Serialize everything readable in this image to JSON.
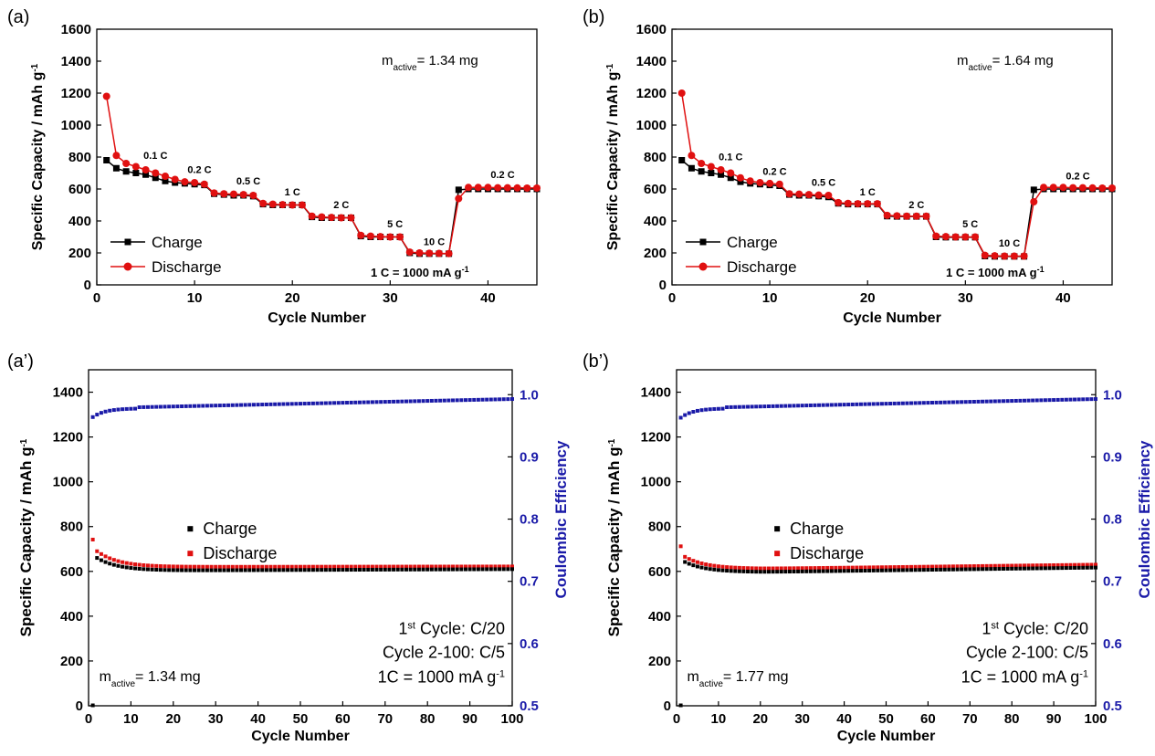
{
  "chart_data": [
    {
      "id": "a",
      "panel_label": "(a)",
      "type": "line",
      "xlabel": "Cycle Number",
      "ylabel": "Specific Capacity / mAh g",
      "ylabel_sup": "-1",
      "xlim": [
        0,
        45
      ],
      "ylim": [
        0,
        1600
      ],
      "xticks": [
        0,
        10,
        20,
        30,
        40
      ],
      "yticks": [
        0,
        200,
        400,
        600,
        800,
        1000,
        1200,
        1400,
        1600
      ],
      "mass_label": "m",
      "mass_sub": "active",
      "mass_value": "= 1.34 mg",
      "current_label": "1 C = 1000 mA g",
      "current_sup": "-1",
      "rate_labels": [
        {
          "text": "0.1 C",
          "x": 6,
          "y": 790
        },
        {
          "text": "0.2 C",
          "x": 10.5,
          "y": 700
        },
        {
          "text": "0.5 C",
          "x": 15.5,
          "y": 630
        },
        {
          "text": "1 C",
          "x": 20,
          "y": 560
        },
        {
          "text": "2 C",
          "x": 25,
          "y": 480
        },
        {
          "text": "5 C",
          "x": 30.5,
          "y": 360
        },
        {
          "text": "10 C",
          "x": 34.5,
          "y": 250
        },
        {
          "text": "0.2 C",
          "x": 41.5,
          "y": 670
        }
      ],
      "legend": "left-middle",
      "series": [
        {
          "name": "Charge",
          "color": "#000000",
          "marker": "square",
          "x": [
            1,
            2,
            3,
            4,
            5,
            6,
            7,
            8,
            9,
            10,
            11,
            12,
            13,
            14,
            15,
            16,
            17,
            18,
            19,
            20,
            21,
            22,
            23,
            24,
            25,
            26,
            27,
            28,
            29,
            30,
            31,
            32,
            33,
            34,
            35,
            36,
            37,
            38,
            39,
            40,
            41,
            42,
            43,
            44,
            45
          ],
          "values": [
            780,
            730,
            710,
            700,
            690,
            670,
            650,
            640,
            635,
            630,
            625,
            570,
            565,
            560,
            560,
            555,
            505,
            500,
            500,
            500,
            500,
            425,
            420,
            420,
            420,
            420,
            305,
            300,
            300,
            300,
            300,
            200,
            195,
            195,
            195,
            195,
            595,
            600,
            600,
            600,
            600,
            600,
            600,
            600,
            600
          ]
        },
        {
          "name": "Discharge",
          "color": "#e01010",
          "marker": "circle",
          "x": [
            1,
            2,
            3,
            4,
            5,
            6,
            7,
            8,
            9,
            10,
            11,
            12,
            13,
            14,
            15,
            16,
            17,
            18,
            19,
            20,
            21,
            22,
            23,
            24,
            25,
            26,
            27,
            28,
            29,
            30,
            31,
            32,
            33,
            34,
            35,
            36,
            37,
            38,
            39,
            40,
            41,
            42,
            43,
            44,
            45
          ],
          "values": [
            1180,
            810,
            760,
            740,
            720,
            700,
            680,
            660,
            645,
            640,
            630,
            575,
            570,
            568,
            565,
            560,
            510,
            505,
            502,
            500,
            500,
            430,
            425,
            422,
            420,
            420,
            310,
            305,
            302,
            300,
            300,
            205,
            200,
            198,
            197,
            196,
            540,
            610,
            610,
            610,
            608,
            608,
            607,
            606,
            606
          ]
        }
      ]
    },
    {
      "id": "b",
      "panel_label": "(b)",
      "type": "line",
      "xlabel": "Cycle Number",
      "ylabel": "Specific Capacity / mAh g",
      "ylabel_sup": "-1",
      "xlim": [
        0,
        45
      ],
      "ylim": [
        0,
        1600
      ],
      "xticks": [
        0,
        10,
        20,
        30,
        40
      ],
      "yticks": [
        0,
        200,
        400,
        600,
        800,
        1000,
        1200,
        1400,
        1600
      ],
      "mass_label": "m",
      "mass_sub": "active",
      "mass_value": "= 1.64 mg",
      "current_label": "1 C = 1000 mA g",
      "current_sup": "-1",
      "rate_labels": [
        {
          "text": "0.1 C",
          "x": 6,
          "y": 780
        },
        {
          "text": "0.2 C",
          "x": 10.5,
          "y": 690
        },
        {
          "text": "0.5 C",
          "x": 15.5,
          "y": 620
        },
        {
          "text": "1 C",
          "x": 20,
          "y": 560
        },
        {
          "text": "2 C",
          "x": 25,
          "y": 480
        },
        {
          "text": "5 C",
          "x": 30.5,
          "y": 360
        },
        {
          "text": "10 C",
          "x": 34.5,
          "y": 240
        },
        {
          "text": "0.2 C",
          "x": 41.5,
          "y": 660
        }
      ],
      "legend": "left-middle",
      "series": [
        {
          "name": "Charge",
          "color": "#000000",
          "marker": "square",
          "x": [
            1,
            2,
            3,
            4,
            5,
            6,
            7,
            8,
            9,
            10,
            11,
            12,
            13,
            14,
            15,
            16,
            17,
            18,
            19,
            20,
            21,
            22,
            23,
            24,
            25,
            26,
            27,
            28,
            29,
            30,
            31,
            32,
            33,
            34,
            35,
            36,
            37,
            38,
            39,
            40,
            41,
            42,
            43,
            44,
            45
          ],
          "values": [
            780,
            730,
            710,
            700,
            690,
            670,
            645,
            635,
            630,
            625,
            620,
            565,
            560,
            560,
            555,
            550,
            510,
            505,
            505,
            505,
            505,
            430,
            428,
            428,
            428,
            428,
            300,
            298,
            298,
            298,
            298,
            180,
            178,
            178,
            178,
            178,
            595,
            600,
            600,
            600,
            600,
            600,
            600,
            600,
            600
          ]
        },
        {
          "name": "Discharge",
          "color": "#e01010",
          "marker": "circle",
          "x": [
            1,
            2,
            3,
            4,
            5,
            6,
            7,
            8,
            9,
            10,
            11,
            12,
            13,
            14,
            15,
            16,
            17,
            18,
            19,
            20,
            21,
            22,
            23,
            24,
            25,
            26,
            27,
            28,
            29,
            30,
            31,
            32,
            33,
            34,
            35,
            36,
            37,
            38,
            39,
            40,
            41,
            42,
            43,
            44,
            45
          ],
          "values": [
            1200,
            810,
            760,
            740,
            720,
            700,
            670,
            650,
            640,
            635,
            630,
            570,
            568,
            565,
            562,
            560,
            515,
            510,
            508,
            508,
            508,
            435,
            432,
            430,
            430,
            430,
            305,
            302,
            300,
            300,
            300,
            185,
            182,
            180,
            180,
            180,
            520,
            610,
            610,
            610,
            608,
            608,
            607,
            606,
            606
          ]
        }
      ]
    },
    {
      "id": "a2",
      "panel_label": "(a’)",
      "type": "scatter",
      "xlabel": "Cycle Number",
      "ylabel": "Specific Capacity / mAh g",
      "ylabel_sup": "-1",
      "y2label": "Coulombic Efficiency",
      "xlim": [
        0,
        100
      ],
      "ylim": [
        0,
        1500
      ],
      "y2lim": [
        0.5,
        1.04
      ],
      "xticks": [
        0,
        10,
        20,
        30,
        40,
        50,
        60,
        70,
        80,
        90,
        100
      ],
      "yticks": [
        0,
        200,
        400,
        600,
        800,
        1000,
        1200,
        1400
      ],
      "y2ticks": [
        "0.5",
        "0.6",
        "0.7",
        "0.8",
        "0.9",
        "1.0"
      ],
      "mass_label": "m",
      "mass_sub": "active",
      "mass_value": "= 1.34 mg",
      "cond_line1_num": "1",
      "cond_line1_sup": "st",
      "cond_line1_rest": " Cycle: C/20",
      "cond_line2": "Cycle 2-100: C/5",
      "cond_line3": "1C = 1000 mA g",
      "cond_line3_sup": "-1",
      "legend": "center",
      "charge": {
        "name": "Charge",
        "color": "#000000",
        "first": 668,
        "min": 612,
        "end": 618,
        "first_x": 1
      },
      "discharge": {
        "name": "Discharge",
        "color": "#e01010",
        "first": 742,
        "second": 690,
        "min": 620,
        "end": 622
      },
      "efficiency": {
        "color": "#1a1aa8",
        "start": 0.964,
        "plateau_start": 0.978,
        "end": 0.993
      }
    },
    {
      "id": "b2",
      "panel_label": "(b’)",
      "type": "scatter",
      "xlabel": "Cycle Number",
      "ylabel": "Specific Capacity / mAh g",
      "ylabel_sup": "-1",
      "y2label": "Coulombic Efficiency",
      "xlim": [
        0,
        100
      ],
      "ylim": [
        0,
        1500
      ],
      "y2lim": [
        0.5,
        1.04
      ],
      "xticks": [
        0,
        10,
        20,
        30,
        40,
        50,
        60,
        70,
        80,
        90,
        100
      ],
      "yticks": [
        0,
        200,
        400,
        600,
        800,
        1000,
        1200,
        1400
      ],
      "y2ticks": [
        "0.5",
        "0.6",
        "0.7",
        "0.8",
        "0.9",
        "1.0"
      ],
      "mass_label": "m",
      "mass_sub": "active",
      "mass_value": "= 1.77 mg",
      "cond_line1_num": "1",
      "cond_line1_sup": "st",
      "cond_line1_rest": " Cycle: C/20",
      "cond_line2": "Cycle 2-100: C/5",
      "cond_line3": "1C = 1000 mA g",
      "cond_line3_sup": "-1",
      "legend": "center",
      "charge": {
        "name": "Charge",
        "color": "#000000",
        "first": 650,
        "min": 605,
        "end": 625,
        "first_x": 1
      },
      "discharge": {
        "name": "Discharge",
        "color": "#e01010",
        "first": 712,
        "second": 665,
        "min": 612,
        "end": 630
      },
      "efficiency": {
        "color": "#1a1aa8",
        "start": 0.963,
        "plateau_start": 0.978,
        "end": 0.993
      }
    }
  ]
}
